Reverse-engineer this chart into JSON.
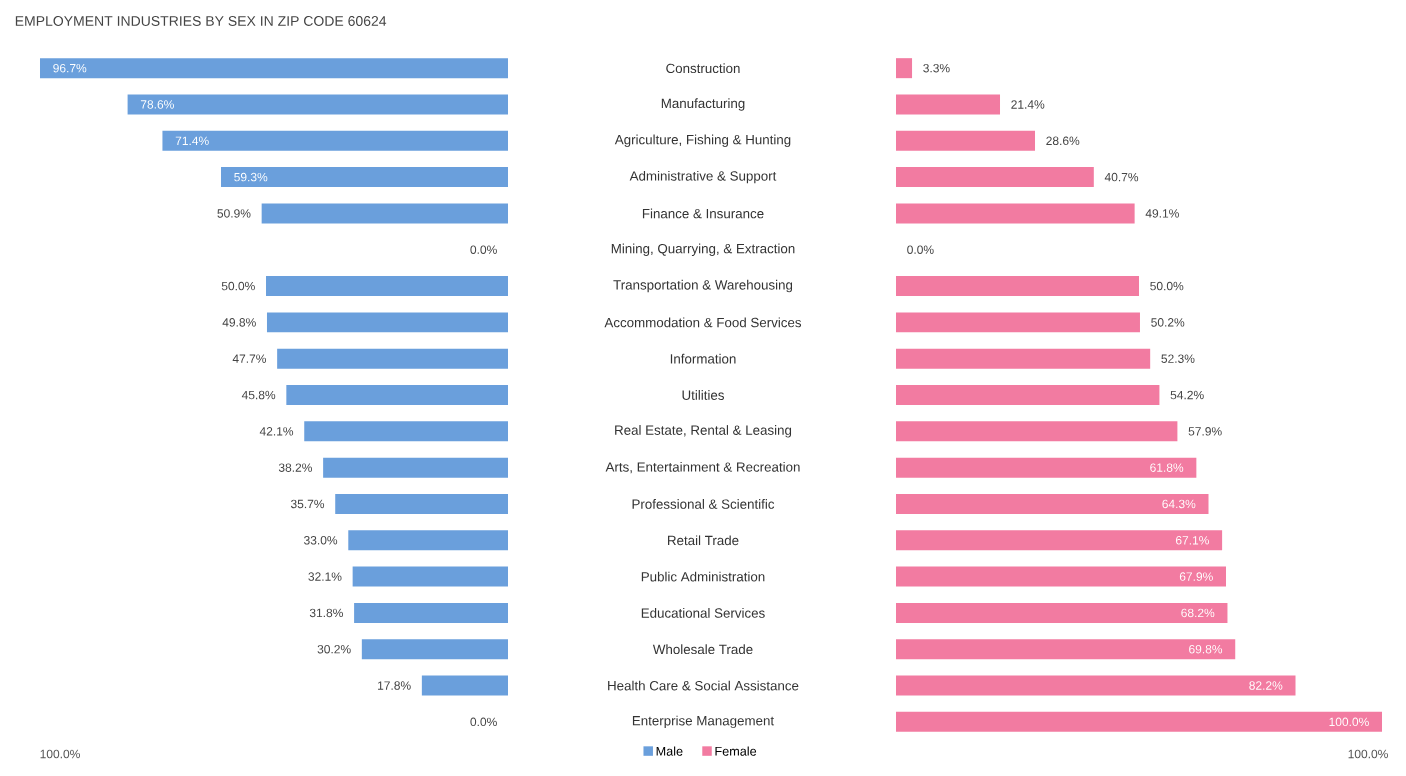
{
  "chart_data": [
    {
      "type": "bar",
      "orientation": "horizontal",
      "title": "EMPLOYMENT INDUSTRIES BY SEX IN ZIP CODE 60624",
      "categories": [
        "Construction",
        "Manufacturing",
        "Agriculture, Fishing & Hunting",
        "Administrative & Support",
        "Finance & Insurance",
        "Mining, Quarrying, & Extraction",
        "Transportation & Warehousing",
        "Accommodation & Food Services",
        "Information",
        "Utilities",
        "Real Estate, Rental & Leasing",
        "Arts, Entertainment & Recreation",
        "Professional & Scientific",
        "Retail Trade",
        "Public Administration",
        "Educational Services",
        "Wholesale Trade",
        "Health Care & Social Assistance",
        "Enterprise Management"
      ],
      "series": [
        {
          "name": "Male",
          "color": "#6a9fdc",
          "values": [
            96.7,
            78.6,
            71.4,
            59.3,
            50.9,
            0.0,
            50.0,
            49.8,
            47.7,
            45.8,
            42.1,
            38.2,
            35.7,
            33.0,
            32.1,
            31.8,
            30.2,
            17.8,
            0.0
          ],
          "value_labels": [
            "96.7%",
            "78.6%",
            "71.4%",
            "59.3%",
            "50.9%",
            "0.0%",
            "50.0%",
            "49.8%",
            "47.7%",
            "45.8%",
            "42.1%",
            "38.2%",
            "35.7%",
            "33.0%",
            "32.1%",
            "31.8%",
            "30.2%",
            "17.8%",
            "0.0%"
          ]
        }
      ],
      "annotations": [
        "100.0%"
      ],
      "legend": "bottom"
    },
    {
      "type": "bar",
      "orientation": "horizontal",
      "categories": [
        null,
        null,
        null,
        null,
        null,
        null,
        null,
        null,
        null,
        null,
        null,
        null,
        null,
        null,
        null,
        null,
        null,
        null,
        null
      ],
      "series": [
        {
          "name": "Female",
          "color": "#f27ba1",
          "values": [
            3.3,
            21.4,
            28.6,
            40.7,
            49.1,
            0.0,
            50.0,
            50.2,
            52.3,
            54.2,
            57.9,
            61.8,
            64.3,
            67.1,
            67.9,
            68.2,
            69.8,
            82.2,
            100.0
          ],
          "value_labels": [
            "3.3%",
            "21.4%",
            "28.6%",
            "40.7%",
            "49.1%",
            "0.0%",
            "50.0%",
            "50.2%",
            "52.3%",
            "54.2%",
            "57.9%",
            "61.8%",
            "64.3%",
            "67.1%",
            "67.9%",
            "68.2%",
            "69.8%",
            "82.2%",
            "100.0%"
          ]
        }
      ],
      "annotations": [
        "100.0%"
      ],
      "legend": "bottom"
    }
  ]
}
